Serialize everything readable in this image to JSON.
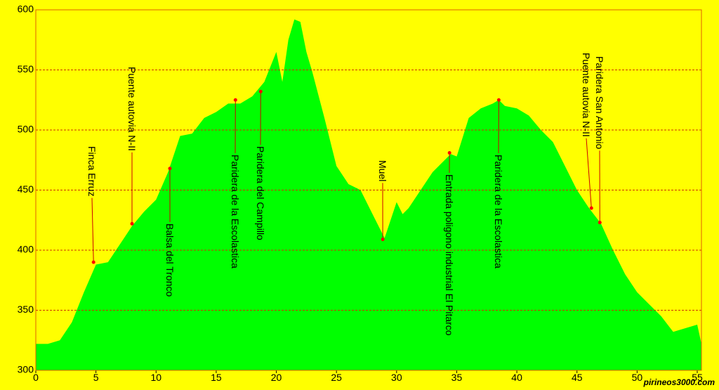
{
  "chart_data": {
    "type": "area",
    "color": "#00ff00",
    "background": "#ffff00",
    "grid": true,
    "grid_color": "#cc3300",
    "xlim": [
      0,
      55.35
    ],
    "ylim": [
      300,
      600
    ],
    "xticks": [
      0,
      5,
      10,
      15,
      20,
      25,
      30,
      35,
      40,
      45,
      50,
      55
    ],
    "yticks": [
      300,
      350,
      400,
      450,
      500,
      550,
      600
    ],
    "x": [
      0,
      1,
      2,
      3,
      4,
      5,
      6,
      7,
      8,
      9,
      10,
      11,
      12,
      13,
      14,
      15,
      16,
      17,
      18,
      19,
      20,
      20.5,
      21,
      21.5,
      22,
      22.5,
      23,
      24,
      25,
      26,
      27,
      28,
      28.5,
      29,
      29.5,
      30,
      30.5,
      31,
      32,
      33,
      34,
      34.5,
      35,
      36,
      37,
      38,
      38.5,
      39,
      40,
      41,
      42,
      43,
      44,
      45,
      46,
      47,
      48,
      49,
      50,
      51,
      52,
      53,
      54,
      55,
      55.35
    ],
    "values": [
      322,
      322,
      325,
      340,
      365,
      388,
      390,
      405,
      420,
      432,
      442,
      465,
      495,
      497,
      510,
      515,
      522,
      522,
      528,
      540,
      565,
      540,
      575,
      592,
      590,
      565,
      548,
      510,
      470,
      455,
      450,
      430,
      420,
      410,
      425,
      440,
      430,
      435,
      450,
      465,
      475,
      480,
      478,
      510,
      518,
      522,
      525,
      520,
      518,
      512,
      500,
      490,
      470,
      450,
      435,
      422,
      400,
      380,
      365,
      355,
      345,
      332,
      335,
      338,
      322
    ],
    "annotations": [
      {
        "label": "Finca Erruz",
        "x": 4.8,
        "y": 390
      },
      {
        "label": "Puente autovia N-II",
        "x": 8.0,
        "y": 422
      },
      {
        "label": "Balsa del Tronco",
        "x": 11.15,
        "y": 468
      },
      {
        "label": "Paridera de la Escolastica",
        "x": 16.6,
        "y": 525
      },
      {
        "label": "Paridera del Campillo",
        "x": 18.7,
        "y": 532
      },
      {
        "label": "Muel",
        "x": 28.85,
        "y": 409
      },
      {
        "label": "Entrada poligono industrial El Pitarco",
        "x": 34.4,
        "y": 481
      },
      {
        "label": "Paridera de la Escolastica",
        "x": 38.5,
        "y": 525
      },
      {
        "label": "Puente autovia N-II",
        "x": 46.2,
        "y": 435
      },
      {
        "label": "Paridera San Antonio",
        "x": 46.9,
        "y": 423
      }
    ],
    "watermark": "pirineos3000.com"
  }
}
